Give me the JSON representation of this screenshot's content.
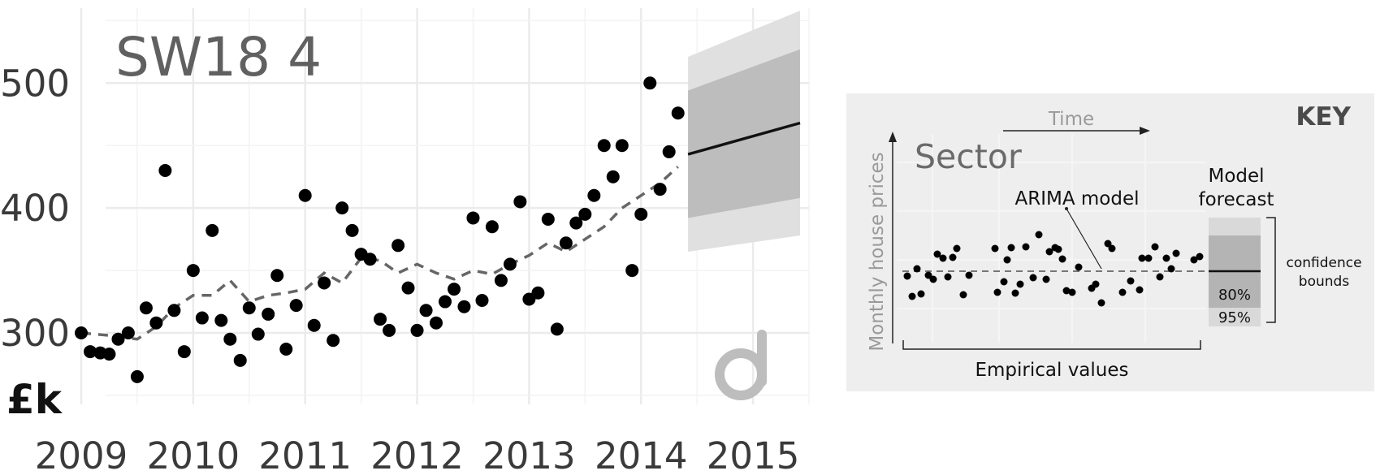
{
  "chart_data": [
    {
      "type": "scatter",
      "title": "SW18 4",
      "unit_label": "£k",
      "x_ticks": [
        "2009",
        "2010",
        "2011",
        "2012",
        "2013",
        "2014",
        "2015"
      ],
      "y_ticks": [
        "300",
        "400",
        "500"
      ],
      "xlim": [
        2009,
        2015.5
      ],
      "ylim": [
        235,
        560
      ],
      "grid": true,
      "series": [
        {
          "role": "empirical",
          "mark": "point",
          "x": [
            2009.0,
            2009.08,
            2009.17,
            2009.25,
            2009.33,
            2009.42,
            2009.5,
            2009.58,
            2009.67,
            2009.75,
            2009.83,
            2009.92,
            2010.0,
            2010.08,
            2010.17,
            2010.25,
            2010.33,
            2010.42,
            2010.5,
            2010.58,
            2010.67,
            2010.75,
            2010.83,
            2010.92,
            2011.0,
            2011.08,
            2011.17,
            2011.25,
            2011.33,
            2011.42,
            2011.5,
            2011.58,
            2011.67,
            2011.75,
            2011.83,
            2011.92,
            2012.0,
            2012.08,
            2012.17,
            2012.25,
            2012.33,
            2012.42,
            2012.5,
            2012.58,
            2012.67,
            2012.75,
            2012.83,
            2012.92,
            2013.0,
            2013.08,
            2013.17,
            2013.25,
            2013.33,
            2013.42,
            2013.5,
            2013.58,
            2013.67,
            2013.75,
            2013.83,
            2013.92,
            2014.0,
            2014.08,
            2014.17,
            2014.25,
            2014.33
          ],
          "y": [
            300,
            285,
            284,
            283,
            295,
            300,
            265,
            320,
            308,
            430,
            318,
            285,
            350,
            312,
            382,
            310,
            295,
            278,
            320,
            299,
            315,
            346,
            287,
            322,
            410,
            306,
            340,
            294,
            400,
            382,
            363,
            359,
            311,
            302,
            370,
            336,
            302,
            318,
            308,
            325,
            335,
            321,
            392,
            326,
            385,
            342,
            355,
            405,
            327,
            332,
            391,
            303,
            372,
            388,
            395,
            410,
            450,
            425,
            450,
            350,
            395,
            500,
            415,
            445,
            476
          ]
        },
        {
          "role": "model",
          "mark": "dashed-line",
          "x": [
            2009.0,
            2009.25,
            2009.5,
            2009.67,
            2009.83,
            2010.0,
            2010.17,
            2010.33,
            2010.5,
            2010.67,
            2010.83,
            2011.0,
            2011.17,
            2011.33,
            2011.5,
            2011.67,
            2011.83,
            2012.0,
            2012.17,
            2012.33,
            2012.5,
            2012.67,
            2012.83,
            2013.0,
            2013.17,
            2013.33,
            2013.5,
            2013.67,
            2013.83,
            2014.0,
            2014.17,
            2014.33
          ],
          "y": [
            300,
            298,
            295,
            305,
            320,
            330,
            330,
            342,
            325,
            330,
            332,
            335,
            348,
            340,
            360,
            358,
            348,
            355,
            348,
            343,
            350,
            347,
            355,
            362,
            372,
            365,
            375,
            385,
            400,
            410,
            420,
            433
          ]
        },
        {
          "role": "forecast",
          "mark": "line",
          "x": [
            2014.42,
            2015.42
          ],
          "y": [
            443,
            468
          ]
        }
      ],
      "forecast_bands": [
        {
          "label": "95%",
          "x": [
            2014.42,
            2015.42
          ],
          "lower": [
            365,
            378
          ],
          "upper": [
            521,
            558
          ]
        },
        {
          "label": "80%",
          "x": [
            2014.42,
            2015.42
          ],
          "lower": [
            392,
            408
          ],
          "upper": [
            494,
            527
          ]
        }
      ]
    }
  ],
  "key": {
    "heading": "KEY",
    "time_label": "Time",
    "y_axis_label": "Monthly house prices",
    "sector_label": "Sector",
    "arima_label": "ARIMA model",
    "forecast_label_line1": "Model",
    "forecast_label_line2": "forecast",
    "confidence_line1": "confidence",
    "confidence_line2": "bounds",
    "band_80": "80%",
    "band_95": "95%",
    "empirical_label": "Empirical values",
    "panel_color": "#eeeeee"
  },
  "logo": {
    "icon": "brand-logo-icon"
  }
}
